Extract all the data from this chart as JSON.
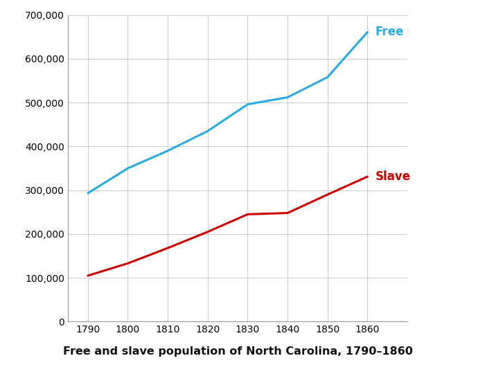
{
  "years": [
    1790,
    1800,
    1810,
    1820,
    1830,
    1840,
    1850,
    1860
  ],
  "free": [
    293179,
    350011,
    390000,
    435000,
    496000,
    512000,
    558000,
    661000
  ],
  "slave": [
    105000,
    133000,
    168000,
    205000,
    245000,
    248000,
    290000,
    331000
  ],
  "free_color": "#29ABE2",
  "slave_color": "#CC0000",
  "free_label": "Free",
  "slave_label": "Slave",
  "title": "Free and slave population of North Carolina, 1790–1860",
  "ylim": [
    0,
    700000
  ],
  "yticks": [
    0,
    100000,
    200000,
    300000,
    400000,
    500000,
    600000,
    700000
  ],
  "xlim": [
    1785,
    1870
  ],
  "xticks": [
    1790,
    1800,
    1810,
    1820,
    1830,
    1840,
    1850,
    1860
  ],
  "line_width": 2.2,
  "title_fontsize": 11.5,
  "label_fontsize": 12,
  "tick_fontsize": 10,
  "background_color": "#ffffff",
  "grid_color": "#cccccc",
  "spine_color": "#999999"
}
